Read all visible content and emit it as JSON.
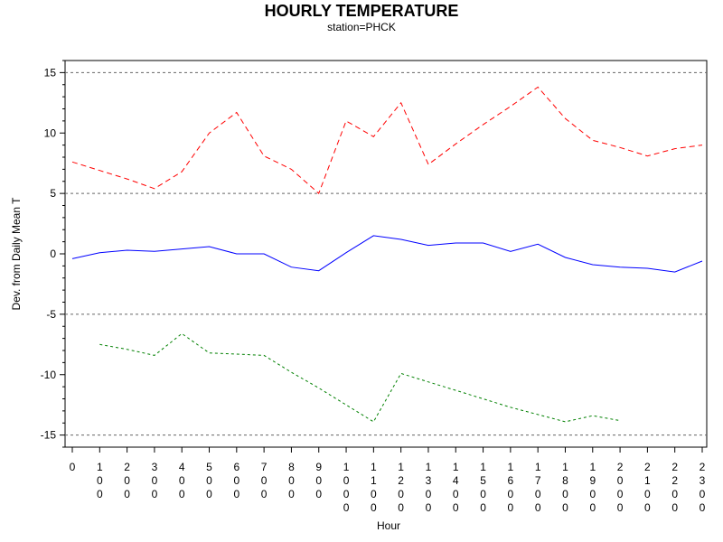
{
  "chart_data": {
    "type": "line",
    "title": "HOURLY TEMPERATURE",
    "subtitle": "station=PHCK",
    "xlabel": "Hour",
    "ylabel": "Dev. from Daily Mean T",
    "ylim": [
      -16,
      16
    ],
    "yticks": [
      -15,
      -10,
      -5,
      0,
      5,
      10,
      15
    ],
    "reference_lines": [
      -15,
      -5,
      5,
      15
    ],
    "x": [
      0,
      100,
      200,
      300,
      400,
      500,
      600,
      700,
      800,
      900,
      1000,
      1100,
      1200,
      1300,
      1400,
      1500,
      1600,
      1700,
      1800,
      1900,
      2000,
      2100,
      2200,
      2300
    ],
    "xtick_labels": [
      "0",
      "100",
      "200",
      "300",
      "400",
      "500",
      "600",
      "700",
      "800",
      "900",
      "1000",
      "1100",
      "1200",
      "1300",
      "1400",
      "1500",
      "1600",
      "1700",
      "1800",
      "1900",
      "2000",
      "2100",
      "2200",
      "2300"
    ],
    "series": [
      {
        "color": "#ff0000",
        "dash": "dashed",
        "values": [
          7.6,
          6.9,
          6.2,
          5.4,
          6.8,
          10.0,
          11.7,
          8.1,
          7.0,
          5.0,
          11.0,
          9.7,
          12.5,
          7.4,
          9.1,
          10.7,
          12.2,
          13.8,
          11.2,
          9.4,
          8.8,
          8.1,
          8.7,
          9.0
        ]
      },
      {
        "color": "#0000ff",
        "dash": "solid",
        "values": [
          -0.4,
          0.1,
          0.3,
          0.2,
          0.4,
          0.6,
          0.0,
          0.0,
          -1.1,
          -1.4,
          0.1,
          1.5,
          1.2,
          0.7,
          0.9,
          0.9,
          0.2,
          0.8,
          -0.3,
          -0.9,
          -1.1,
          -1.2,
          -1.5,
          -0.6
        ]
      },
      {
        "color": "#008000",
        "dash": "dotted",
        "values": [
          null,
          -7.5,
          -7.9,
          -8.4,
          -6.6,
          -8.2,
          -8.3,
          -8.4,
          -9.8,
          -11.1,
          -12.5,
          -13.9,
          -9.9,
          -10.6,
          -11.3,
          -12.0,
          -12.7,
          -13.3,
          -13.9,
          -13.4,
          -13.8,
          null,
          null,
          null
        ]
      }
    ]
  }
}
